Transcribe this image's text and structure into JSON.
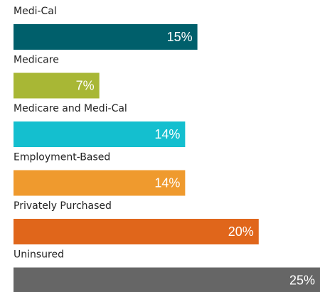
{
  "chart_data": {
    "type": "bar",
    "categories": [
      "Medi-Cal",
      "Medicare",
      "Medicare and Medi-Cal",
      "Employment-Based",
      "Privately Purchased",
      "Uninsured"
    ],
    "values": [
      15,
      7,
      14,
      14,
      20,
      25
    ],
    "value_labels": [
      "15%",
      "7%",
      "14%",
      "14%",
      "20%",
      "25%"
    ],
    "colors": [
      "#005f6b",
      "#a8b735",
      "#14bfcf",
      "#ef9a2e",
      "#e0661b",
      "#666666"
    ],
    "xlim": [
      0,
      25
    ]
  }
}
